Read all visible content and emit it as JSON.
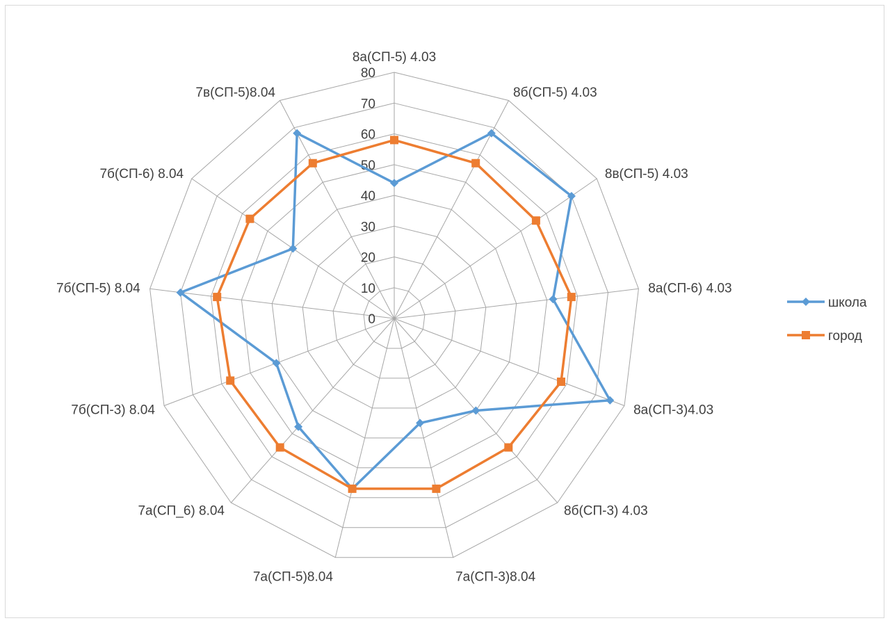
{
  "chart_data": {
    "type": "radar",
    "categories": [
      "8а(СП-5) 4.03",
      "8б(СП-5) 4.03",
      "8в(СП-5) 4.03",
      "8а(СП-6) 4.03",
      "8а(СП-3)4.03",
      "8б(СП-3) 4.03",
      "7а(СП-3)8.04",
      "7а(СП-5)8.04",
      "7а(СП_6) 8.04",
      "7б(СП-3) 8.04",
      "7б(СП-5) 8.04",
      "7б(СП-6) 8.04",
      "7в(СП-5)8.04"
    ],
    "series": [
      {
        "name": "школа",
        "color": "#5b9bd5",
        "marker": "diamond",
        "values": [
          44,
          68,
          70,
          52,
          75,
          40,
          35,
          57,
          47,
          41,
          70,
          40,
          68
        ]
      },
      {
        "name": "город",
        "color": "#ed7d31",
        "marker": "square",
        "values": [
          58,
          57,
          56,
          58,
          58,
          56,
          57,
          57,
          56,
          57,
          58,
          57,
          57
        ]
      }
    ],
    "r_ticks": [
      "0",
      "10",
      "20",
      "30",
      "40",
      "50",
      "60",
      "70",
      "80"
    ],
    "r_range": [
      0,
      80
    ],
    "grid": true,
    "legend_position": "right"
  }
}
